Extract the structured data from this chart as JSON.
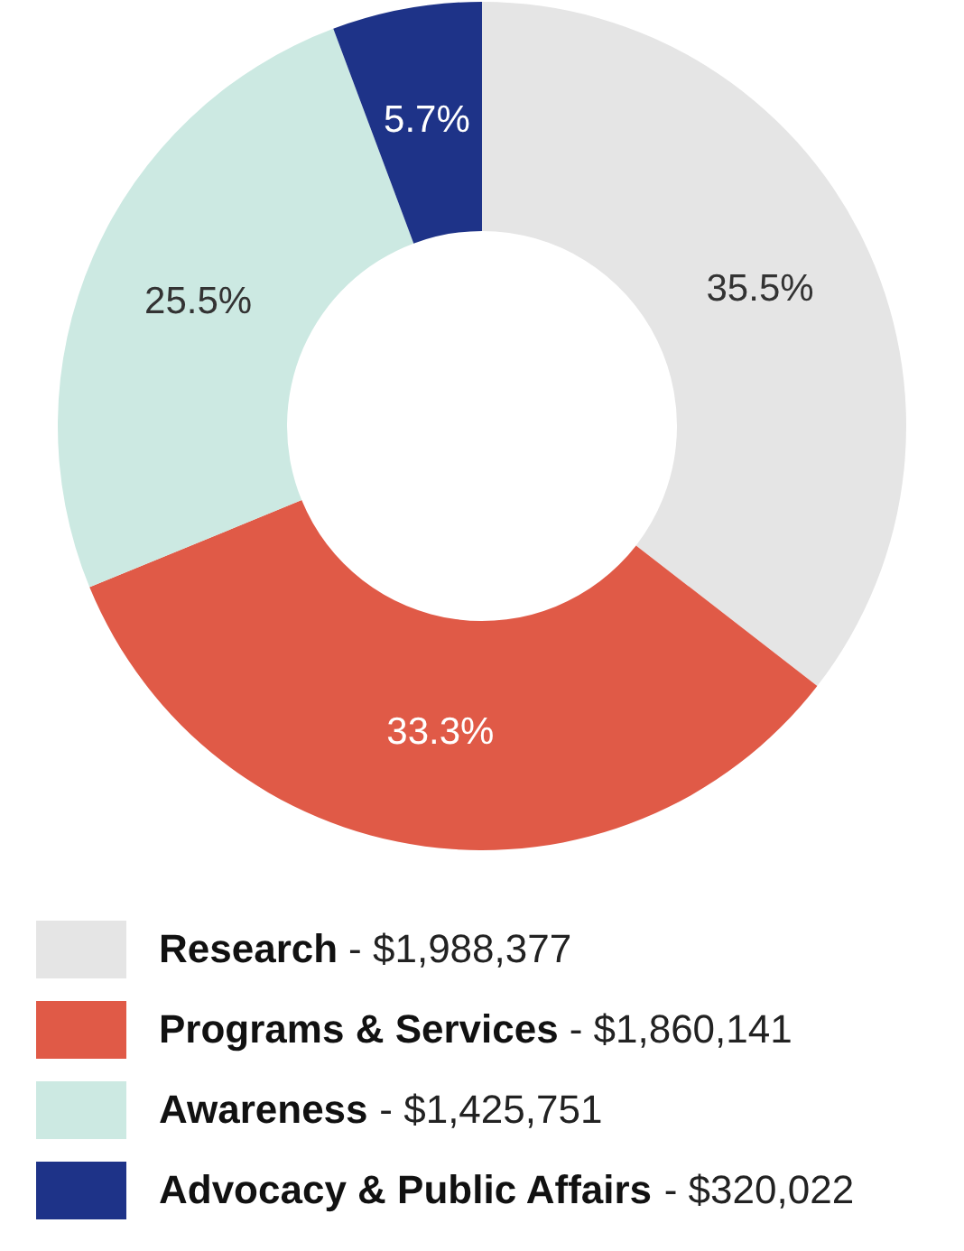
{
  "chart_data": {
    "type": "donut",
    "categories": [
      "Research",
      "Programs & Services",
      "Awareness",
      "Advocacy & Public Affairs"
    ],
    "values": [
      35.5,
      33.3,
      25.5,
      5.7
    ],
    "value_labels": [
      "35.5%",
      "33.3%",
      "25.5%",
      "5.7%"
    ],
    "annotations": [
      "- $1,988,377",
      "- $1,860,141",
      "- $1,425,751",
      "- $320,022"
    ],
    "colors": [
      "#e5e5e5",
      "#e05a47",
      "#cce9e2",
      "#1e3388"
    ],
    "legend": "bottom"
  }
}
